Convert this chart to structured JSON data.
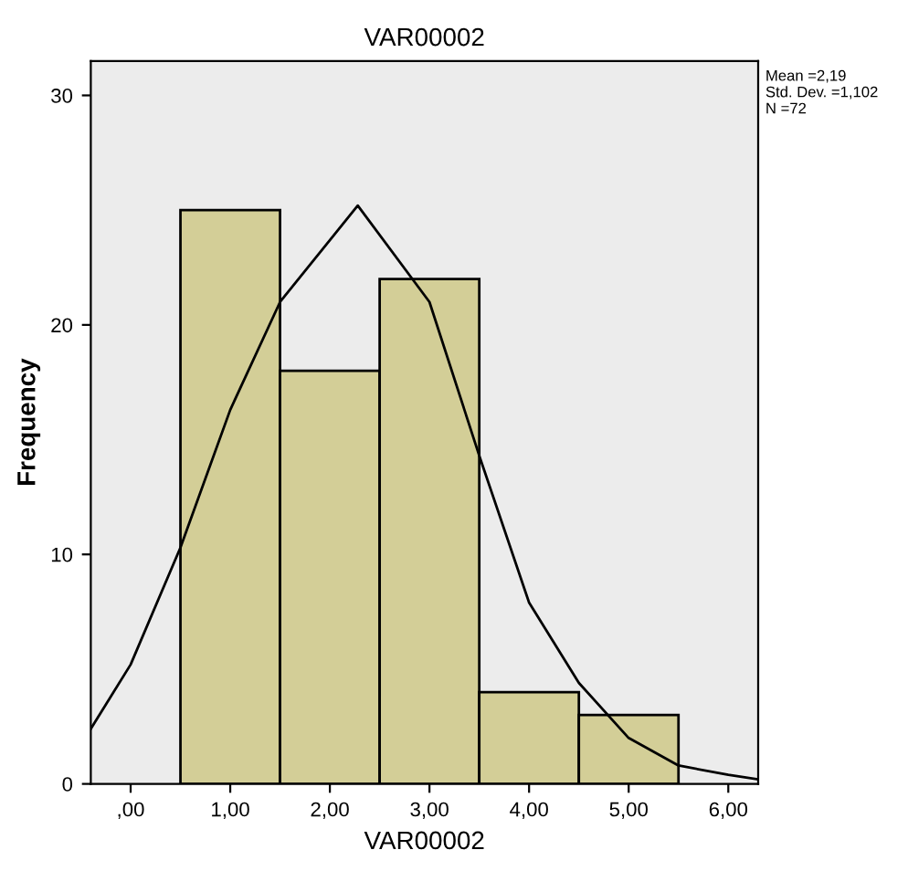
{
  "chart_data": {
    "type": "histogram",
    "title": "VAR00002",
    "xlabel": "VAR00002",
    "ylabel": "Frequency",
    "bins": [
      0.5,
      1.5,
      2.5,
      3.5,
      4.5,
      5.5
    ],
    "series": [
      {
        "color": "#d3ce97",
        "values": [
          25,
          18,
          22,
          4,
          3
        ]
      },
      {
        "type": "line",
        "color": "#000000",
        "x": [
          -0.4,
          0,
          0.5,
          1.0,
          1.5,
          2.28,
          3.0,
          3.5,
          4.0,
          4.5,
          5.0,
          5.5,
          6.0,
          6.3
        ],
        "values": [
          2.4,
          5.2,
          10.3,
          16.3,
          21,
          25.2,
          21,
          14.3,
          7.9,
          4.4,
          2,
          0.8,
          0.4,
          0.2
        ]
      }
    ],
    "xlim": [
      -0.4,
      6.3
    ],
    "ylim": [
      0,
      31.5
    ],
    "xticks": [
      {
        "value": 0,
        "label": ",00"
      },
      {
        "value": 1,
        "label": "1,00"
      },
      {
        "value": 2,
        "label": "2,00"
      },
      {
        "value": 3,
        "label": "3,00"
      },
      {
        "value": 4,
        "label": "4,00"
      },
      {
        "value": 5,
        "label": "5,00"
      },
      {
        "value": 6,
        "label": "6,00"
      }
    ],
    "yticks": [
      0,
      10,
      20,
      30
    ],
    "annotations": [
      "Mean =2,19\nStd. Dev. =1,102\nN =72"
    ]
  }
}
